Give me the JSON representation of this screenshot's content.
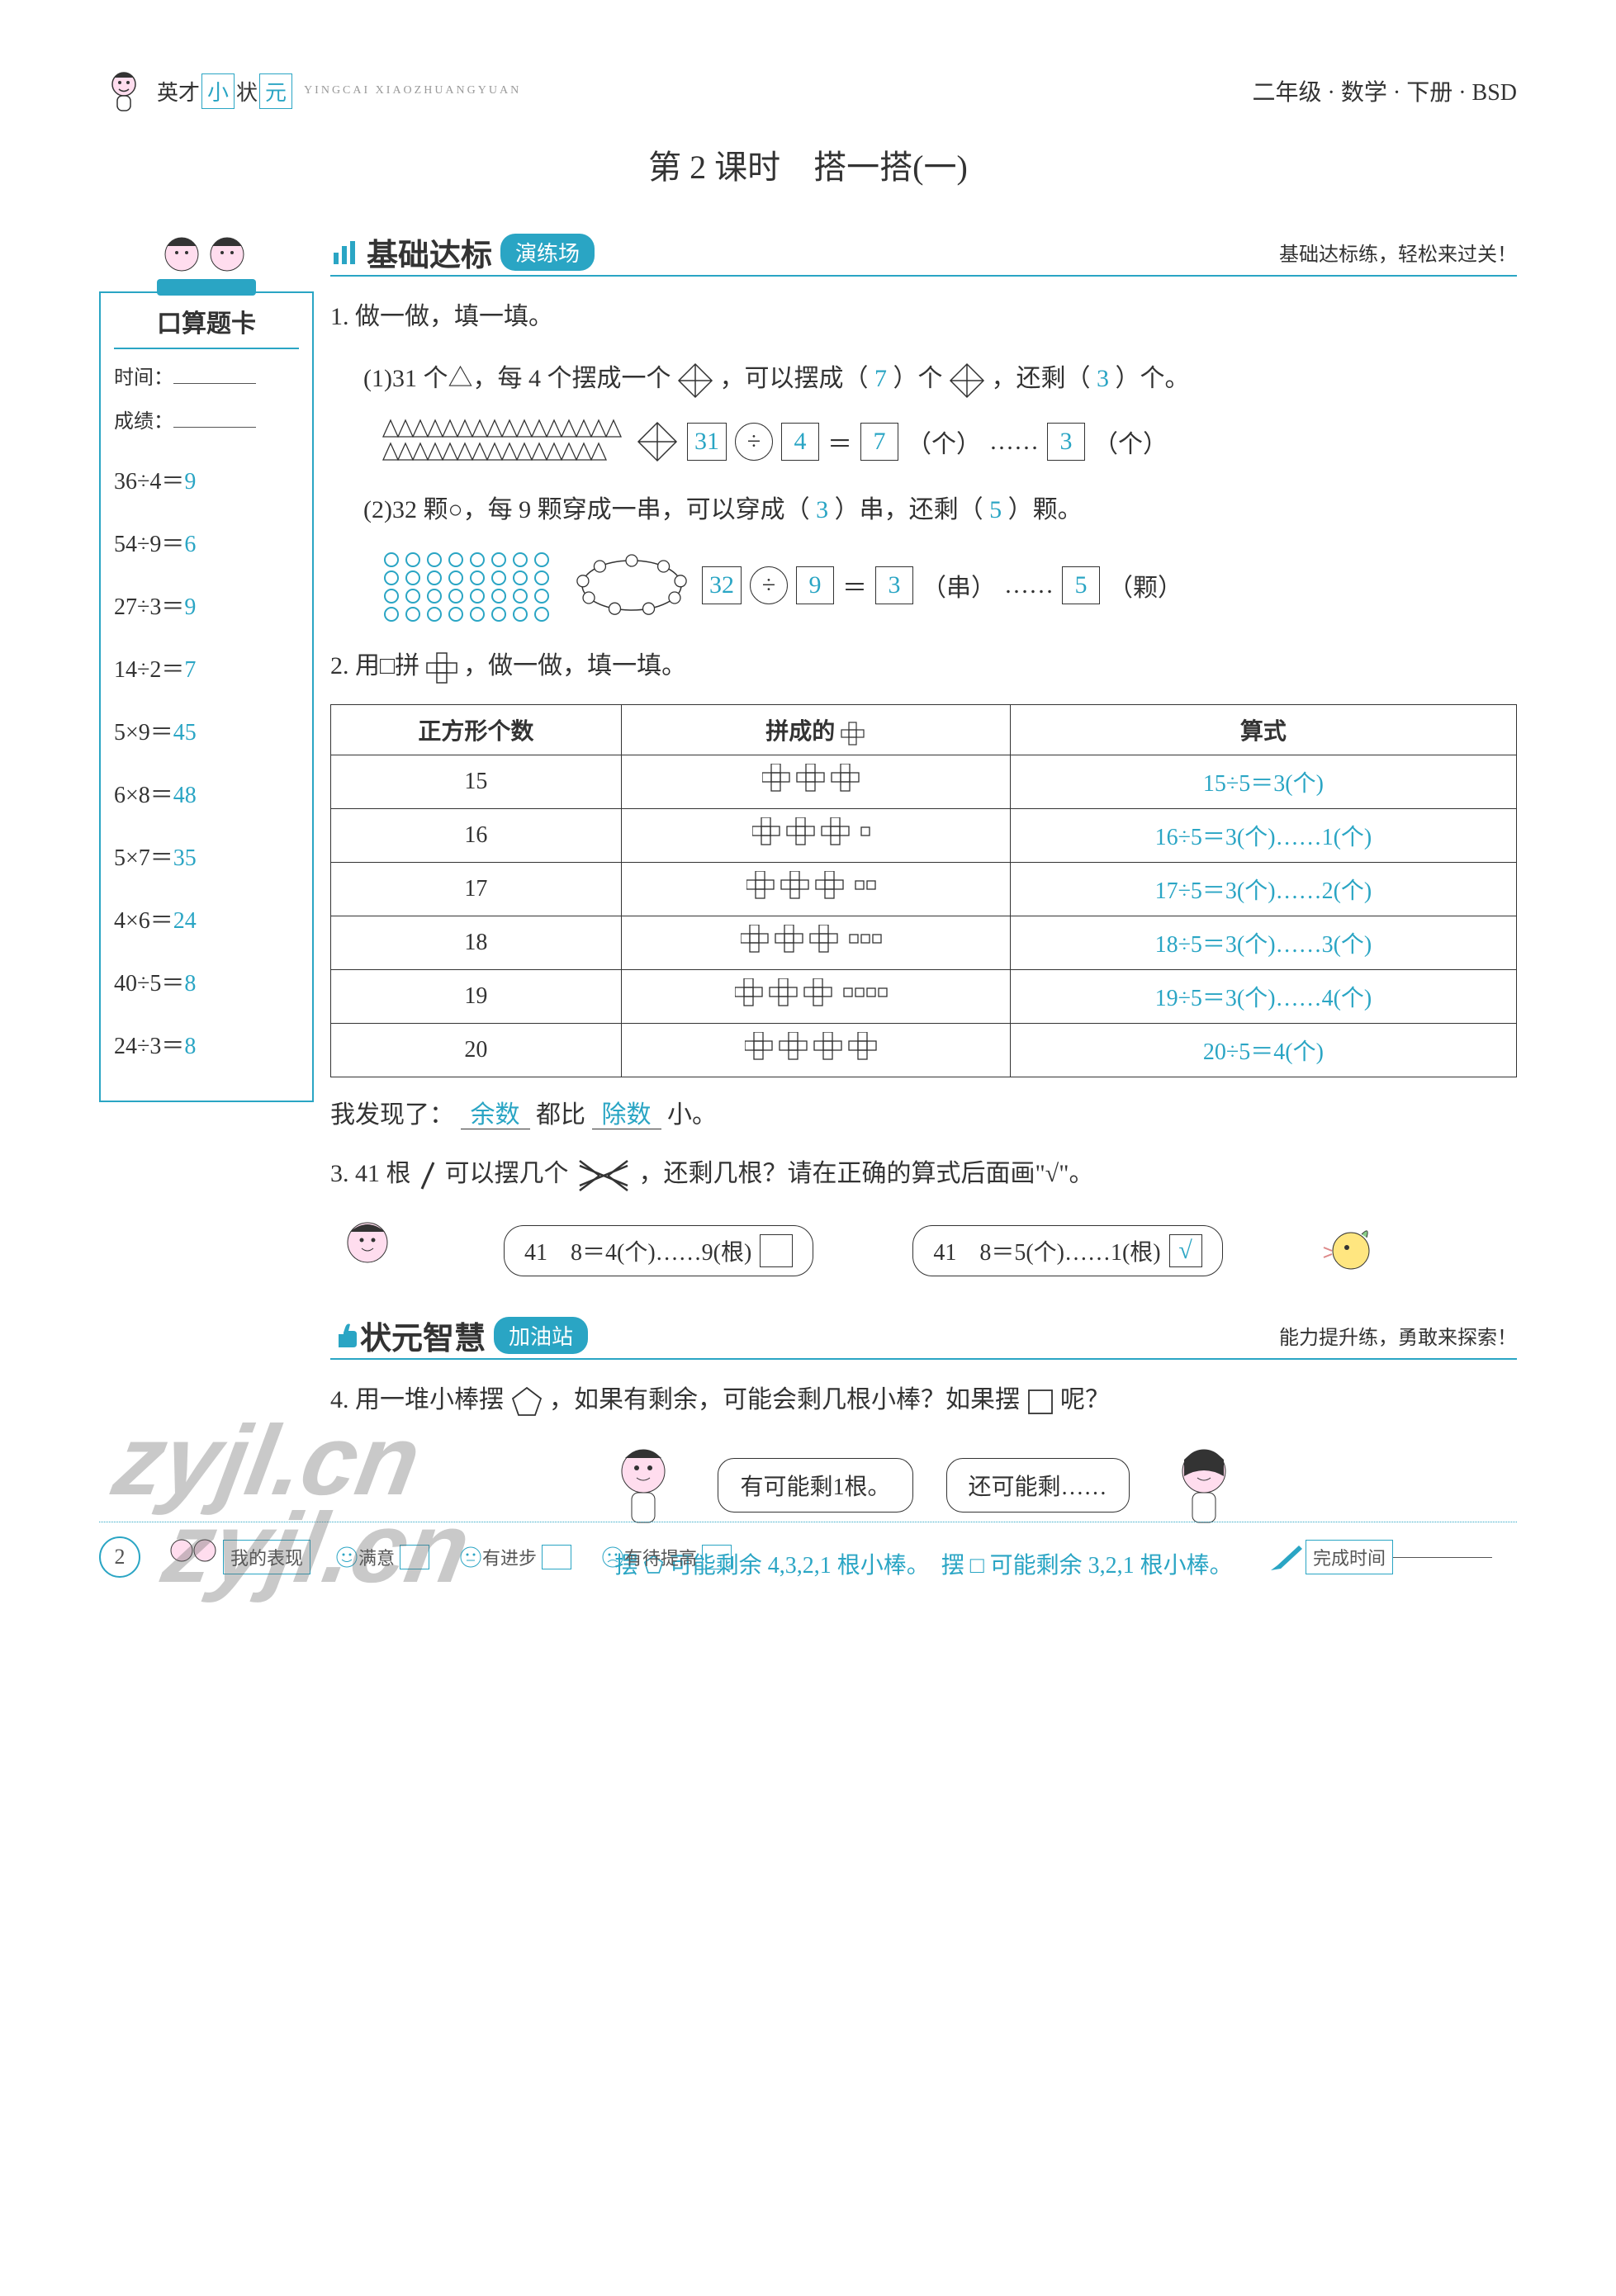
{
  "header": {
    "brand_prefix": "英才",
    "brand_box1": "小",
    "brand_mid": "状",
    "brand_box2": "元",
    "brand_pinyin": "YINGCAI XIAOZHUANGYUAN",
    "grade_info": "二年级 · 数学 · 下册 · BSD"
  },
  "lesson_title": "第 2 课时　搭一搭(一)",
  "sidebar": {
    "card_title": "口算题卡",
    "time_label": "时间：",
    "score_label": "成绩：",
    "calc": [
      {
        "expr": "36÷4＝",
        "ans": "9"
      },
      {
        "expr": "54÷9＝",
        "ans": "6"
      },
      {
        "expr": "27÷3＝",
        "ans": "9"
      },
      {
        "expr": "14÷2＝",
        "ans": "7"
      },
      {
        "expr": "5×9＝",
        "ans": "45"
      },
      {
        "expr": "6×8＝",
        "ans": "48"
      },
      {
        "expr": "5×7＝",
        "ans": "35"
      },
      {
        "expr": "4×6＝",
        "ans": "24"
      },
      {
        "expr": "40÷5＝",
        "ans": "8"
      },
      {
        "expr": "24÷3＝",
        "ans": "8"
      }
    ]
  },
  "section1": {
    "title": "基础达标",
    "tag": "演练场",
    "note": "基础达标练，轻松来过关！"
  },
  "section2": {
    "title": "状元智慧",
    "tag": "加油站",
    "note": "能力提升练，勇敢来探索！"
  },
  "q1": {
    "stem": "1. 做一做，填一填。",
    "p1_a": "(1)31 个△，每 4 个摆成一个",
    "p1_b": "，可以摆成（",
    "p1_ans1": "7",
    "p1_c": "）个",
    "p1_d": "，还剩（",
    "p1_ans2": "3",
    "p1_e": "）个。",
    "eq1": {
      "a": "31",
      "op": "÷",
      "b": "4",
      "eq": "＝",
      "c": "7",
      "u1": "个",
      "dots": "……",
      "d": "3",
      "u2": "个"
    },
    "p2_a": "(2)32 颗○，每 9 颗穿成一串，可以穿成（",
    "p2_ans1": "3",
    "p2_b": "）串，还剩（",
    "p2_ans2": "5",
    "p2_c": "）颗。",
    "eq2": {
      "a": "32",
      "op": "÷",
      "b": "9",
      "eq": "＝",
      "c": "3",
      "u1": "串",
      "dots": "……",
      "d": "5",
      "u2": "颗"
    }
  },
  "q2": {
    "stem_a": "2. 用□拼",
    "stem_b": "，做一做，填一填。",
    "headers": [
      "正方形个数",
      "拼成的",
      "算式"
    ],
    "rows": [
      {
        "n": "15",
        "shapes": 3,
        "extra": 0,
        "formula": "15÷5＝3(个)"
      },
      {
        "n": "16",
        "shapes": 3,
        "extra": 1,
        "formula": "16÷5＝3(个)……1(个)"
      },
      {
        "n": "17",
        "shapes": 3,
        "extra": 2,
        "formula": "17÷5＝3(个)……2(个)"
      },
      {
        "n": "18",
        "shapes": 3,
        "extra": 3,
        "formula": "18÷5＝3(个)……3(个)"
      },
      {
        "n": "19",
        "shapes": 3,
        "extra": 4,
        "formula": "19÷5＝3(个)……4(个)"
      },
      {
        "n": "20",
        "shapes": 4,
        "extra": 0,
        "formula": "20÷5＝4(个)"
      }
    ],
    "discover_a": "我发现了：",
    "discover_f1": "余数",
    "discover_b": "都比",
    "discover_f2": "除数",
    "discover_c": "小。"
  },
  "q3": {
    "stem_a": "3. 41 根",
    "stem_b": "可以摆几个",
    "stem_c": "，还剩几根？请在正确的算式后面画\"√\"。",
    "opt1": "41　8＝4(个)……9(根)",
    "opt1_check": "",
    "opt2": "41　8＝5(个)……1(根)",
    "opt2_check": "√"
  },
  "q4": {
    "stem_a": "4. 用一堆小棒摆",
    "stem_b": "，如果有剩余，可能会剩几根小棒？如果摆",
    "stem_c": "呢？",
    "speech1": "有可能剩1根。",
    "speech2": "还可能剩……",
    "answer": "摆 ⬠ 可能剩余 4,3,2,1 根小棒。　摆 □ 可能剩余 3,2,1 根小棒。"
  },
  "footer": {
    "page": "2",
    "label_perf": "我的表现",
    "opt1": "满意",
    "opt2": "有进步",
    "opt3": "有待提高",
    "label_time": "完成时间"
  },
  "watermark": "zyjl.cn",
  "colors": {
    "accent": "#2aa5c4",
    "text": "#333333",
    "answer": "#2aa5c4"
  }
}
